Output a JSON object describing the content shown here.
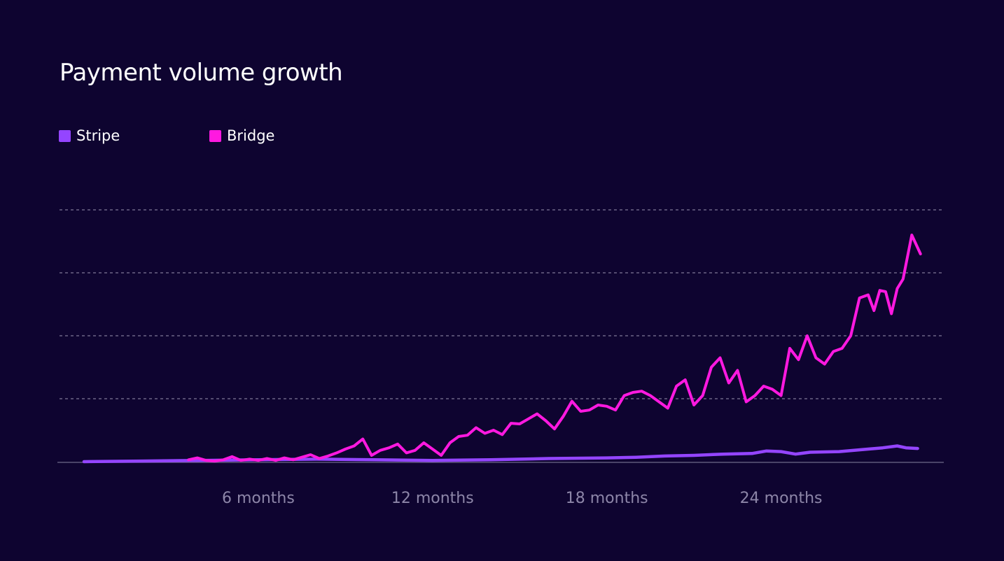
{
  "title": "Payment volume growth",
  "colors": {
    "background": "#0e0430",
    "stripe": "#9445ff",
    "bridge": "#ff19e0",
    "grid": "#8a84a3",
    "axis": "#5f587a",
    "tick_text": "#8d86a8"
  },
  "chart_data": {
    "type": "line",
    "title": "Payment volume growth",
    "xlabel": "",
    "ylabel": "",
    "legend_placement": "top-left",
    "grid": "horizontal dashed",
    "xlim": [
      0,
      29
    ],
    "ylim": [
      0,
      4
    ],
    "x_ticks": [
      {
        "value": 6,
        "label": "6 months"
      },
      {
        "value": 12,
        "label": "12 months"
      },
      {
        "value": 18,
        "label": "18 months"
      },
      {
        "value": 24,
        "label": "24 months"
      }
    ],
    "y_gridlines": [
      1,
      2,
      3,
      4
    ],
    "series": [
      {
        "name": "Stripe",
        "color": "#9445ff",
        "points": [
          [
            0.0,
            0.0
          ],
          [
            2.0,
            0.01
          ],
          [
            4.0,
            0.02
          ],
          [
            6.0,
            0.03
          ],
          [
            8.0,
            0.04
          ],
          [
            10.0,
            0.03
          ],
          [
            12.0,
            0.02
          ],
          [
            14.0,
            0.03
          ],
          [
            16.0,
            0.05
          ],
          [
            18.0,
            0.06
          ],
          [
            19.0,
            0.07
          ],
          [
            20.0,
            0.09
          ],
          [
            21.0,
            0.1
          ],
          [
            22.0,
            0.12
          ],
          [
            23.0,
            0.13
          ],
          [
            23.5,
            0.17
          ],
          [
            24.0,
            0.16
          ],
          [
            24.5,
            0.12
          ],
          [
            25.0,
            0.15
          ],
          [
            26.0,
            0.16
          ],
          [
            27.0,
            0.2
          ],
          [
            27.5,
            0.22
          ],
          [
            28.0,
            0.25
          ],
          [
            28.3,
            0.22
          ],
          [
            28.7,
            0.21
          ]
        ]
      },
      {
        "name": "Bridge",
        "color": "#ff19e0",
        "points": [
          [
            3.6,
            0.03
          ],
          [
            3.9,
            0.06
          ],
          [
            4.2,
            0.02
          ],
          [
            4.5,
            0.01
          ],
          [
            4.8,
            0.03
          ],
          [
            5.1,
            0.08
          ],
          [
            5.4,
            0.02
          ],
          [
            5.7,
            0.04
          ],
          [
            6.0,
            0.02
          ],
          [
            6.3,
            0.05
          ],
          [
            6.6,
            0.02
          ],
          [
            6.9,
            0.06
          ],
          [
            7.2,
            0.03
          ],
          [
            7.5,
            0.07
          ],
          [
            7.8,
            0.11
          ],
          [
            8.1,
            0.05
          ],
          [
            8.4,
            0.09
          ],
          [
            8.7,
            0.14
          ],
          [
            9.0,
            0.2
          ],
          [
            9.3,
            0.25
          ],
          [
            9.6,
            0.36
          ],
          [
            9.9,
            0.1
          ],
          [
            10.2,
            0.18
          ],
          [
            10.5,
            0.22
          ],
          [
            10.8,
            0.28
          ],
          [
            11.1,
            0.14
          ],
          [
            11.4,
            0.18
          ],
          [
            11.7,
            0.3
          ],
          [
            12.0,
            0.2
          ],
          [
            12.3,
            0.1
          ],
          [
            12.6,
            0.3
          ],
          [
            12.9,
            0.4
          ],
          [
            13.2,
            0.42
          ],
          [
            13.5,
            0.54
          ],
          [
            13.8,
            0.45
          ],
          [
            14.1,
            0.5
          ],
          [
            14.4,
            0.43
          ],
          [
            14.7,
            0.61
          ],
          [
            15.0,
            0.6
          ],
          [
            15.3,
            0.68
          ],
          [
            15.6,
            0.76
          ],
          [
            15.9,
            0.65
          ],
          [
            16.2,
            0.52
          ],
          [
            16.5,
            0.72
          ],
          [
            16.8,
            0.96
          ],
          [
            17.1,
            0.8
          ],
          [
            17.4,
            0.82
          ],
          [
            17.7,
            0.9
          ],
          [
            18.0,
            0.88
          ],
          [
            18.3,
            0.82
          ],
          [
            18.6,
            1.05
          ],
          [
            18.9,
            1.1
          ],
          [
            19.2,
            1.12
          ],
          [
            19.5,
            1.05
          ],
          [
            19.8,
            0.95
          ],
          [
            20.1,
            0.85
          ],
          [
            20.4,
            1.2
          ],
          [
            20.7,
            1.3
          ],
          [
            21.0,
            0.9
          ],
          [
            21.3,
            1.05
          ],
          [
            21.6,
            1.5
          ],
          [
            21.9,
            1.65
          ],
          [
            22.2,
            1.25
          ],
          [
            22.5,
            1.45
          ],
          [
            22.8,
            0.95
          ],
          [
            23.1,
            1.05
          ],
          [
            23.4,
            1.2
          ],
          [
            23.7,
            1.15
          ],
          [
            24.0,
            1.05
          ],
          [
            24.3,
            1.8
          ],
          [
            24.6,
            1.62
          ],
          [
            24.9,
            2.0
          ],
          [
            25.2,
            1.65
          ],
          [
            25.5,
            1.55
          ],
          [
            25.8,
            1.75
          ],
          [
            26.1,
            1.8
          ],
          [
            26.4,
            2.0
          ],
          [
            26.7,
            2.6
          ],
          [
            27.0,
            2.65
          ],
          [
            27.2,
            2.4
          ],
          [
            27.4,
            2.72
          ],
          [
            27.6,
            2.7
          ],
          [
            27.8,
            2.35
          ],
          [
            28.0,
            2.75
          ],
          [
            28.2,
            2.9
          ],
          [
            28.5,
            3.6
          ],
          [
            28.8,
            3.3
          ]
        ]
      }
    ]
  }
}
